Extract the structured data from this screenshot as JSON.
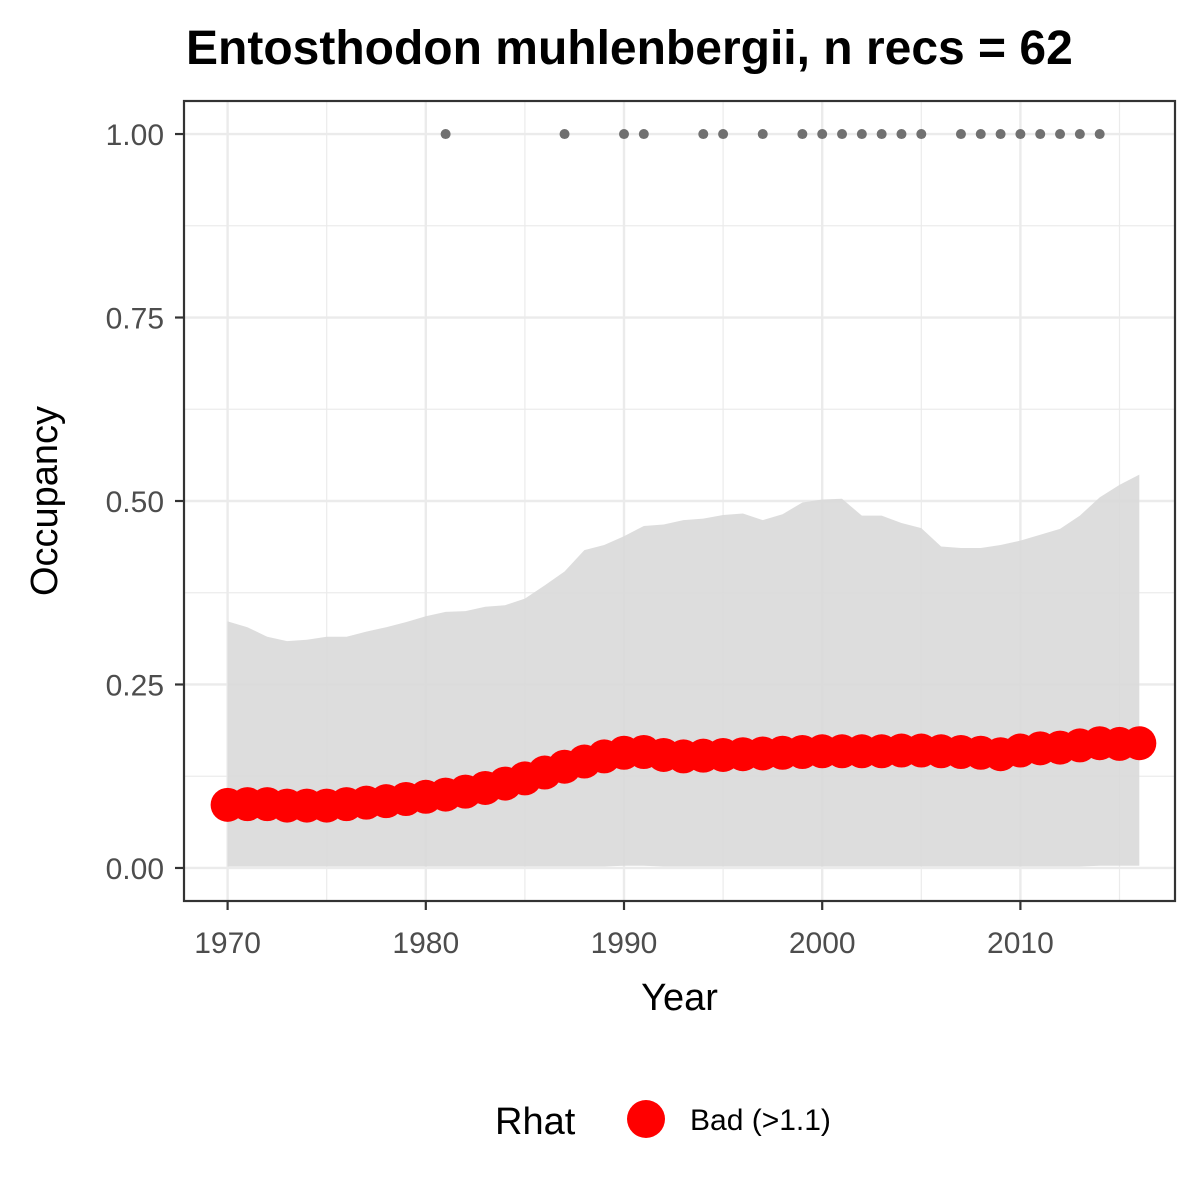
{
  "chart_data": {
    "type": "line",
    "title": "Entosthodon muhlenbergii, n recs = 62",
    "xlabel": "Year",
    "ylabel": "Occupancy",
    "xlim": [
      1967.8,
      2017.8
    ],
    "ylim": [
      -0.045,
      1.045
    ],
    "x_ticks": [
      1970,
      1980,
      1990,
      2000,
      2010
    ],
    "x_tick_labels": [
      "1970",
      "1980",
      "1990",
      "2000",
      "2010"
    ],
    "y_ticks": [
      0,
      0.25,
      0.5,
      0.75,
      1.0
    ],
    "y_tick_labels": [
      "0.00",
      "0.25",
      "0.50",
      "0.75",
      "1.00"
    ],
    "grid": true,
    "colors": {
      "mean_points": "#ff0000",
      "ribbon": "#d9d9d9",
      "record_points": "#707070",
      "grid": "#ebebeb",
      "panel_border": "#333333"
    },
    "x": [
      1970,
      1971,
      1972,
      1973,
      1974,
      1975,
      1976,
      1977,
      1978,
      1979,
      1980,
      1981,
      1982,
      1983,
      1984,
      1985,
      1986,
      1987,
      1988,
      1989,
      1990,
      1991,
      1992,
      1993,
      1994,
      1995,
      1996,
      1997,
      1998,
      1999,
      2000,
      2001,
      2002,
      2003,
      2004,
      2005,
      2006,
      2007,
      2008,
      2009,
      2010,
      2011,
      2012,
      2013,
      2014,
      2015,
      2016
    ],
    "series": [
      {
        "name": "Bad (>1.1)",
        "values": [
          0.086,
          0.087,
          0.087,
          0.085,
          0.085,
          0.085,
          0.087,
          0.089,
          0.091,
          0.094,
          0.097,
          0.1,
          0.104,
          0.109,
          0.115,
          0.122,
          0.13,
          0.138,
          0.145,
          0.152,
          0.157,
          0.158,
          0.154,
          0.152,
          0.153,
          0.154,
          0.155,
          0.156,
          0.157,
          0.158,
          0.159,
          0.159,
          0.159,
          0.159,
          0.16,
          0.16,
          0.159,
          0.158,
          0.157,
          0.155,
          0.16,
          0.163,
          0.164,
          0.167,
          0.17,
          0.169,
          0.17
        ]
      }
    ],
    "ribbon": {
      "lower": [
        0.002,
        0.002,
        0.002,
        0.002,
        0.002,
        0.002,
        0.002,
        0.002,
        0.002,
        0.002,
        0.002,
        0.002,
        0.002,
        0.002,
        0.002,
        0.002,
        0.002,
        0.002,
        0.002,
        0.002,
        0.003,
        0.003,
        0.002,
        0.002,
        0.002,
        0.002,
        0.002,
        0.002,
        0.002,
        0.002,
        0.002,
        0.002,
        0.002,
        0.002,
        0.002,
        0.002,
        0.002,
        0.002,
        0.002,
        0.002,
        0.002,
        0.002,
        0.002,
        0.002,
        0.003,
        0.003,
        0.003
      ],
      "upper": [
        0.336,
        0.328,
        0.315,
        0.309,
        0.311,
        0.315,
        0.315,
        0.322,
        0.328,
        0.335,
        0.343,
        0.349,
        0.35,
        0.356,
        0.358,
        0.367,
        0.385,
        0.404,
        0.433,
        0.44,
        0.452,
        0.466,
        0.468,
        0.474,
        0.476,
        0.481,
        0.483,
        0.474,
        0.482,
        0.498,
        0.502,
        0.503,
        0.48,
        0.48,
        0.47,
        0.463,
        0.438,
        0.436,
        0.436,
        0.44,
        0.446,
        0.454,
        0.462,
        0.48,
        0.505,
        0.522,
        0.536
      ]
    },
    "records": {
      "x": [
        1981,
        1987,
        1990,
        1991,
        1994,
        1995,
        1997,
        1999,
        2000,
        2001,
        2002,
        2003,
        2004,
        2005,
        2007,
        2008,
        2009,
        2010,
        2011,
        2012,
        2013,
        2014
      ],
      "y": [
        1,
        1,
        1,
        1,
        1,
        1,
        1,
        1,
        1,
        1,
        1,
        1,
        1,
        1,
        1,
        1,
        1,
        1,
        1,
        1,
        1,
        1
      ]
    },
    "legend": {
      "title": "Rhat",
      "entries": [
        "Bad (>1.1)"
      ],
      "position": "bottom"
    }
  }
}
